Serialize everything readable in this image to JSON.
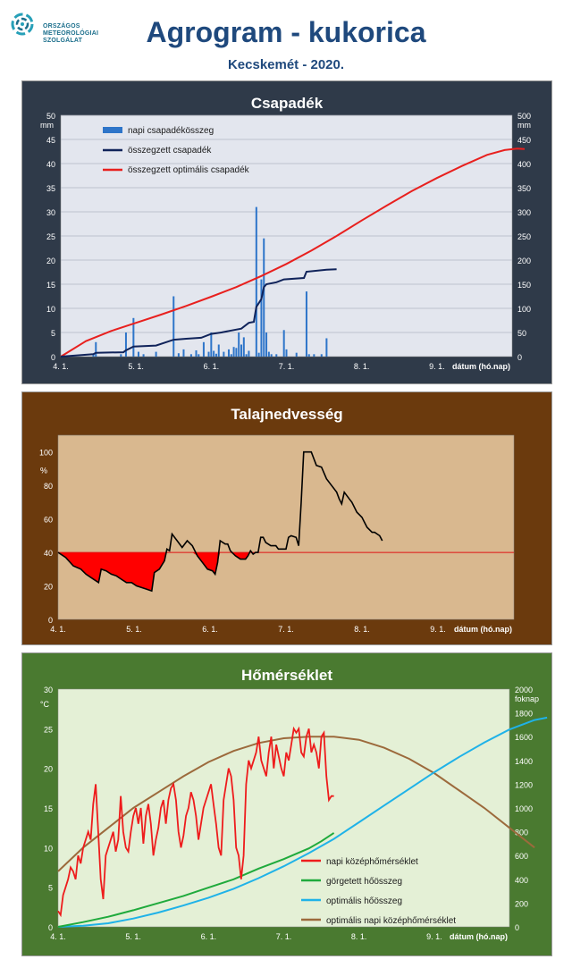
{
  "header": {
    "logo_lines": [
      "ORSZÁGOS",
      "METEOROLÓGIAI",
      "SZOLGÁLAT"
    ],
    "title": "Agrogram - kukorica",
    "subtitle": "Kecskemét - 2020."
  },
  "colors": {
    "title_blue": "#1f497d",
    "panel1_bg": "#2f3a49",
    "panel2_bg": "#6b3a0d",
    "panel3_bg": "#4a7a30"
  },
  "chart_data": [
    {
      "type": "bar+line",
      "title": "Csapadék",
      "x_ticks": [
        "4. 1.",
        "5. 1.",
        "6. 1.",
        "7. 1.",
        "8. 1.",
        "9. 1."
      ],
      "x_label": "dátum (hó.nap)",
      "x_range_days": [
        0,
        180
      ],
      "y_left": {
        "unit": "mm",
        "ticks": [
          0,
          5,
          10,
          15,
          20,
          25,
          30,
          35,
          40,
          45,
          50
        ],
        "range": [
          0,
          50
        ]
      },
      "y_right": {
        "unit": "mm",
        "ticks": [
          0,
          50,
          100,
          150,
          200,
          250,
          300,
          350,
          400,
          450,
          500
        ],
        "range": [
          0,
          500
        ]
      },
      "legend": [
        "napi csapadékösszeg",
        "összegzett csapadék",
        "összegzett optimális  csapadék"
      ],
      "daily_precip": [
        [
          13,
          0.5
        ],
        [
          14,
          3
        ],
        [
          24,
          0.5
        ],
        [
          26,
          5
        ],
        [
          29,
          8
        ],
        [
          31,
          1
        ],
        [
          33,
          0.5
        ],
        [
          38,
          1
        ],
        [
          45,
          12.5
        ],
        [
          47,
          0.7
        ],
        [
          49,
          1.5
        ],
        [
          52,
          0.5
        ],
        [
          54,
          1.3
        ],
        [
          55,
          0.5
        ],
        [
          57,
          3
        ],
        [
          59,
          1
        ],
        [
          60,
          5
        ],
        [
          61,
          1.2
        ],
        [
          62,
          0.6
        ],
        [
          63,
          2.5
        ],
        [
          65,
          1
        ],
        [
          67,
          1.5
        ],
        [
          68,
          0.5
        ],
        [
          69,
          2
        ],
        [
          70,
          1.8
        ],
        [
          71,
          5
        ],
        [
          72,
          2.5
        ],
        [
          73,
          4
        ],
        [
          74,
          0.5
        ],
        [
          75,
          1.2
        ],
        [
          78,
          31
        ],
        [
          79,
          0.8
        ],
        [
          80,
          16
        ],
        [
          81,
          24.5
        ],
        [
          82,
          5
        ],
        [
          83,
          1
        ],
        [
          84,
          0.5
        ],
        [
          86,
          0.5
        ],
        [
          89,
          5.5
        ],
        [
          90,
          1.5
        ],
        [
          94,
          0.8
        ],
        [
          98,
          13.5
        ],
        [
          99,
          0.5
        ],
        [
          101,
          0.5
        ],
        [
          104,
          0.5
        ],
        [
          106,
          3.8
        ]
      ],
      "cumulative_precip": [
        [
          0,
          0
        ],
        [
          13,
          5
        ],
        [
          14,
          8
        ],
        [
          25,
          9
        ],
        [
          26,
          13
        ],
        [
          29,
          21
        ],
        [
          38,
          23
        ],
        [
          45,
          35
        ],
        [
          50,
          37
        ],
        [
          56,
          39
        ],
        [
          60,
          47
        ],
        [
          64,
          50
        ],
        [
          68,
          54
        ],
        [
          72,
          58
        ],
        [
          75,
          70
        ],
        [
          77,
          72
        ],
        [
          78,
          103
        ],
        [
          80,
          119
        ],
        [
          81,
          144
        ],
        [
          82,
          150
        ],
        [
          86,
          154
        ],
        [
          89,
          160
        ],
        [
          97,
          163
        ],
        [
          98,
          176
        ],
        [
          106,
          180
        ],
        [
          110,
          181
        ]
      ],
      "cumulative_optimal_precip": [
        [
          0,
          0
        ],
        [
          10,
          32
        ],
        [
          20,
          53
        ],
        [
          30,
          70
        ],
        [
          40,
          87
        ],
        [
          50,
          105
        ],
        [
          60,
          124
        ],
        [
          70,
          144
        ],
        [
          80,
          167
        ],
        [
          90,
          192
        ],
        [
          100,
          220
        ],
        [
          110,
          250
        ],
        [
          120,
          282
        ],
        [
          130,
          313
        ],
        [
          140,
          343
        ],
        [
          150,
          370
        ],
        [
          160,
          395
        ],
        [
          170,
          418
        ],
        [
          177,
          428
        ],
        [
          182,
          431
        ],
        [
          185,
          430
        ]
      ]
    },
    {
      "type": "line",
      "title": "Talajnedvesség",
      "x_ticks": [
        "4. 1.",
        "5. 1.",
        "6. 1.",
        "7. 1.",
        "8. 1.",
        "9. 1."
      ],
      "x_label": "dátum (hó.nap)",
      "y": {
        "unit": "%",
        "ticks": [
          0,
          20,
          40,
          60,
          80,
          100
        ],
        "range": [
          0,
          110
        ]
      },
      "threshold": 40,
      "soil_moisture": [
        [
          0,
          40
        ],
        [
          3,
          37
        ],
        [
          6,
          32
        ],
        [
          9,
          30
        ],
        [
          11,
          27
        ],
        [
          13,
          25
        ],
        [
          15,
          23
        ],
        [
          16,
          22
        ],
        [
          17,
          30
        ],
        [
          19,
          29
        ],
        [
          21,
          27
        ],
        [
          23,
          26
        ],
        [
          25,
          24
        ],
        [
          27,
          22
        ],
        [
          29,
          22
        ],
        [
          31,
          20
        ],
        [
          33,
          19
        ],
        [
          35,
          18
        ],
        [
          37,
          17
        ],
        [
          38,
          28
        ],
        [
          40,
          30
        ],
        [
          42,
          35
        ],
        [
          43,
          42
        ],
        [
          44,
          41
        ],
        [
          45,
          51
        ],
        [
          47,
          47
        ],
        [
          49,
          43
        ],
        [
          51,
          47
        ],
        [
          53,
          44
        ],
        [
          55,
          38
        ],
        [
          57,
          34
        ],
        [
          59,
          30
        ],
        [
          61,
          29
        ],
        [
          62,
          27
        ],
        [
          63,
          34
        ],
        [
          64,
          47
        ],
        [
          66,
          45
        ],
        [
          67,
          45
        ],
        [
          68,
          41
        ],
        [
          70,
          38
        ],
        [
          72,
          36
        ],
        [
          74,
          36
        ],
        [
          75,
          38
        ],
        [
          76,
          41
        ],
        [
          77,
          39
        ],
        [
          78,
          40
        ],
        [
          79,
          40
        ],
        [
          80,
          49
        ],
        [
          81,
          49
        ],
        [
          82,
          46
        ],
        [
          84,
          44
        ],
        [
          86,
          44
        ],
        [
          87,
          42
        ],
        [
          89,
          42
        ],
        [
          90,
          42
        ],
        [
          91,
          49
        ],
        [
          92,
          50
        ],
        [
          94,
          49
        ],
        [
          95,
          44
        ],
        [
          96,
          70
        ],
        [
          97,
          100
        ],
        [
          98,
          100
        ],
        [
          100,
          100
        ],
        [
          102,
          92
        ],
        [
          104,
          91
        ],
        [
          106,
          84
        ],
        [
          108,
          80
        ],
        [
          110,
          76
        ],
        [
          111,
          72
        ],
        [
          112,
          69
        ],
        [
          113,
          76
        ],
        [
          115,
          72
        ],
        [
          116,
          70
        ],
        [
          118,
          64
        ],
        [
          120,
          61
        ],
        [
          121,
          58
        ],
        [
          122,
          55
        ],
        [
          124,
          52
        ],
        [
          125,
          52
        ],
        [
          126,
          51
        ],
        [
          127,
          50
        ],
        [
          128,
          47
        ]
      ]
    },
    {
      "type": "line",
      "title": "Hőmérséklet",
      "x_ticks": [
        "4. 1.",
        "5. 1.",
        "6. 1.",
        "7. 1.",
        "8. 1.",
        "9. 1."
      ],
      "x_label": "dátum (hó.nap)",
      "y_left": {
        "unit": "°C",
        "ticks": [
          0,
          5,
          10,
          15,
          20,
          25,
          30
        ],
        "range": [
          0,
          30
        ]
      },
      "y_right": {
        "unit": "foknap",
        "ticks": [
          0,
          200,
          400,
          600,
          800,
          1000,
          1200,
          1400,
          1600,
          1800,
          2000
        ],
        "range": [
          0,
          2000
        ]
      },
      "legend": [
        "napi középhőmérséklet",
        "görgetett hőösszeg",
        "optimális hőösszeg",
        "optimális napi középhőmérséklet"
      ],
      "daily_mean_temp": [
        [
          0,
          2
        ],
        [
          1,
          1.5
        ],
        [
          2,
          4
        ],
        [
          3,
          5
        ],
        [
          4,
          6
        ],
        [
          5,
          7.5
        ],
        [
          6,
          7
        ],
        [
          7,
          6
        ],
        [
          8,
          9
        ],
        [
          9,
          8
        ],
        [
          10,
          10
        ],
        [
          11,
          11
        ],
        [
          12,
          12
        ],
        [
          13,
          11
        ],
        [
          14,
          15.5
        ],
        [
          15,
          18
        ],
        [
          16,
          12
        ],
        [
          17,
          6
        ],
        [
          18,
          3.5
        ],
        [
          19,
          9
        ],
        [
          20,
          10
        ],
        [
          21,
          11
        ],
        [
          22,
          12
        ],
        [
          23,
          9.5
        ],
        [
          24,
          11
        ],
        [
          25,
          16.5
        ],
        [
          26,
          12
        ],
        [
          27,
          10
        ],
        [
          28,
          9.5
        ],
        [
          29,
          12
        ],
        [
          30,
          14
        ],
        [
          31,
          15
        ],
        [
          32,
          13
        ],
        [
          33,
          15
        ],
        [
          34,
          10.5
        ],
        [
          35,
          14
        ],
        [
          36,
          15.5
        ],
        [
          37,
          13
        ],
        [
          38,
          9
        ],
        [
          39,
          11
        ],
        [
          40,
          12.5
        ],
        [
          41,
          15
        ],
        [
          42,
          16
        ],
        [
          43,
          13
        ],
        [
          44,
          16
        ],
        [
          45,
          17.5
        ],
        [
          46,
          18
        ],
        [
          47,
          16
        ],
        [
          48,
          12
        ],
        [
          49,
          10
        ],
        [
          50,
          11.5
        ],
        [
          51,
          14
        ],
        [
          52,
          15
        ],
        [
          53,
          17
        ],
        [
          54,
          16
        ],
        [
          55,
          14
        ],
        [
          56,
          11
        ],
        [
          57,
          13
        ],
        [
          58,
          15
        ],
        [
          59,
          16
        ],
        [
          60,
          17
        ],
        [
          61,
          18
        ],
        [
          62,
          15.5
        ],
        [
          63,
          13
        ],
        [
          64,
          10
        ],
        [
          65,
          9
        ],
        [
          66,
          16
        ],
        [
          67,
          18
        ],
        [
          68,
          20
        ],
        [
          69,
          19
        ],
        [
          70,
          16
        ],
        [
          71,
          10
        ],
        [
          72,
          9
        ],
        [
          73,
          6
        ],
        [
          74,
          9
        ],
        [
          75,
          18
        ],
        [
          76,
          21
        ],
        [
          77,
          20
        ],
        [
          78,
          21
        ],
        [
          79,
          22
        ],
        [
          80,
          24
        ],
        [
          81,
          21
        ],
        [
          82,
          20
        ],
        [
          83,
          19
        ],
        [
          84,
          22
        ],
        [
          85,
          24
        ],
        [
          86,
          20
        ],
        [
          87,
          23
        ],
        [
          88,
          21.5
        ],
        [
          89,
          20
        ],
        [
          90,
          19
        ],
        [
          91,
          22
        ],
        [
          92,
          21
        ],
        [
          93,
          23
        ],
        [
          94,
          25
        ],
        [
          95,
          24.5
        ],
        [
          96,
          25
        ],
        [
          97,
          22
        ],
        [
          98,
          21.5
        ],
        [
          99,
          24
        ],
        [
          100,
          25
        ],
        [
          101,
          22
        ],
        [
          102,
          23
        ],
        [
          103,
          22
        ],
        [
          104,
          20
        ],
        [
          105,
          24
        ],
        [
          106,
          24.5
        ],
        [
          107,
          19
        ],
        [
          108,
          16
        ],
        [
          109,
          16.5
        ],
        [
          110,
          16.5
        ]
      ],
      "rolling_heat_sum": [
        [
          0,
          0
        ],
        [
          10,
          40
        ],
        [
          20,
          85
        ],
        [
          30,
          140
        ],
        [
          40,
          200
        ],
        [
          50,
          260
        ],
        [
          60,
          330
        ],
        [
          70,
          400
        ],
        [
          80,
          490
        ],
        [
          90,
          570
        ],
        [
          100,
          660
        ],
        [
          105,
          720
        ],
        [
          110,
          790
        ]
      ],
      "optimal_heat_sum": [
        [
          0,
          0
        ],
        [
          10,
          10
        ],
        [
          20,
          30
        ],
        [
          30,
          70
        ],
        [
          40,
          120
        ],
        [
          50,
          180
        ],
        [
          60,
          245
        ],
        [
          70,
          320
        ],
        [
          80,
          410
        ],
        [
          90,
          510
        ],
        [
          100,
          620
        ],
        [
          110,
          740
        ],
        [
          120,
          880
        ],
        [
          130,
          1020
        ],
        [
          140,
          1160
        ],
        [
          150,
          1300
        ],
        [
          160,
          1430
        ],
        [
          170,
          1550
        ],
        [
          180,
          1660
        ],
        [
          190,
          1740
        ],
        [
          195,
          1760
        ]
      ],
      "optimal_daily_temp": [
        [
          0,
          7
        ],
        [
          10,
          10
        ],
        [
          20,
          12.5
        ],
        [
          30,
          15
        ],
        [
          40,
          17
        ],
        [
          50,
          19
        ],
        [
          60,
          20.8
        ],
        [
          70,
          22.2
        ],
        [
          80,
          23.2
        ],
        [
          90,
          23.8
        ],
        [
          100,
          24
        ],
        [
          110,
          24
        ],
        [
          120,
          23.6
        ],
        [
          130,
          22.6
        ],
        [
          140,
          21.2
        ],
        [
          150,
          19.4
        ],
        [
          160,
          17.2
        ],
        [
          170,
          15
        ],
        [
          180,
          12.5
        ],
        [
          190,
          10
        ]
      ]
    }
  ]
}
